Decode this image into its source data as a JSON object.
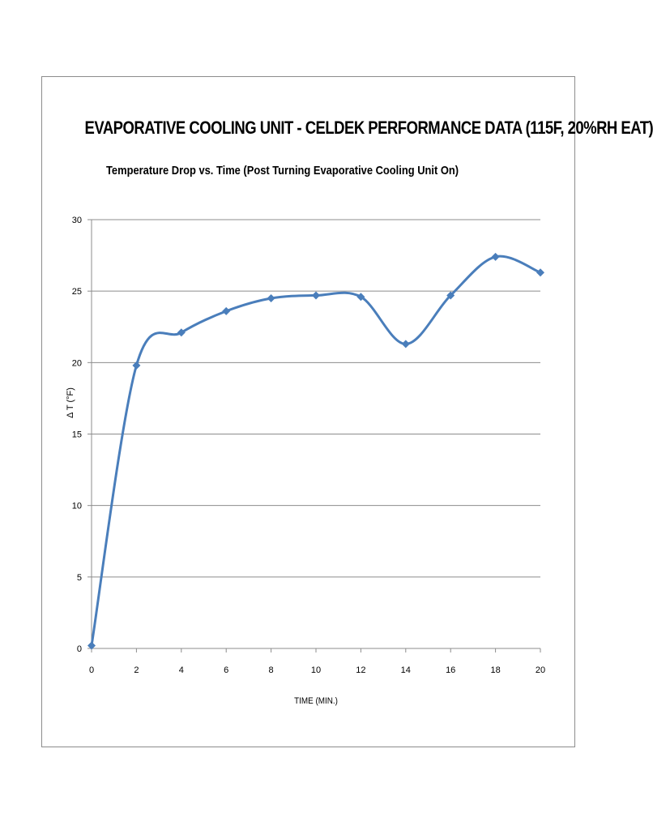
{
  "chart_data": {
    "type": "line",
    "title": "EVAPORATIVE COOLING UNIT - CELDEK PERFORMANCE DATA (115F, 20%RH EAT)",
    "subtitle": "Temperature Drop vs. Time (Post Turning Evaporative Cooling Unit On)",
    "xlabel": "TIME (MIN.)",
    "ylabel": "Δ T (°F)",
    "xlim": [
      0,
      20
    ],
    "ylim": [
      0,
      30
    ],
    "x_ticks": [
      0,
      2,
      4,
      6,
      8,
      10,
      12,
      14,
      16,
      18,
      20
    ],
    "y_ticks": [
      0,
      5,
      10,
      15,
      20,
      25,
      30
    ],
    "grid": "horizontal",
    "legend": "none",
    "line_color": "#4a7ebb",
    "series": [
      {
        "x": [
          0,
          2,
          4,
          6,
          8,
          10,
          12,
          14,
          16,
          18,
          20
        ],
        "values": [
          0.2,
          19.8,
          22.1,
          23.6,
          24.5,
          24.7,
          24.6,
          21.3,
          24.7,
          27.4,
          26.3
        ]
      }
    ]
  }
}
